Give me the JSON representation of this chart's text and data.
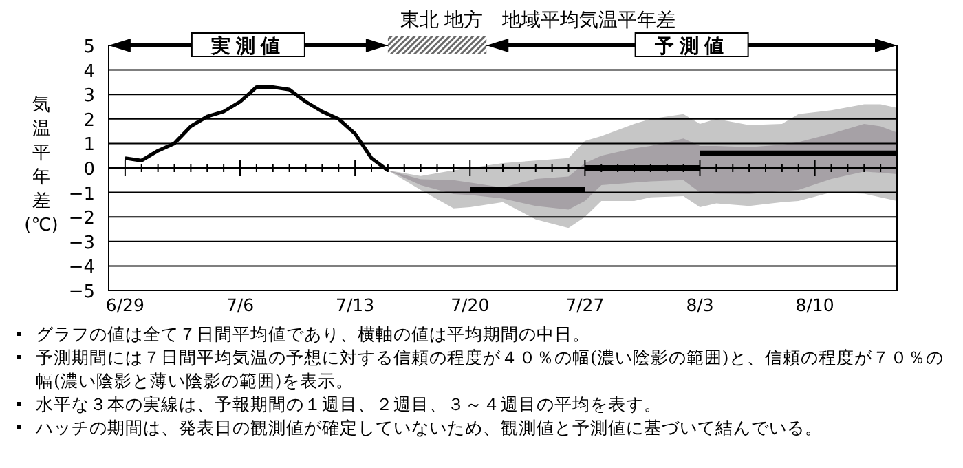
{
  "chart_data": {
    "type": "line",
    "title": "東北 地方　地域平均気温平年差",
    "ylabel": "気温平年差(℃)",
    "xlim": [
      "--06-28",
      "--08-15"
    ],
    "ylim": [
      -5,
      5
    ],
    "yticks": [
      -5,
      -4,
      -3,
      -2,
      -1,
      0,
      1,
      2,
      3,
      4,
      5
    ],
    "xticks": [
      {
        "value": "--06-29",
        "label": "6/29"
      },
      {
        "value": "--07-06",
        "label": "7/6"
      },
      {
        "value": "--07-13",
        "label": "7/13"
      },
      {
        "value": "--07-20",
        "label": "7/20"
      },
      {
        "value": "--07-27",
        "label": "7/27"
      },
      {
        "value": "--08-03",
        "label": "8/3"
      },
      {
        "value": "--08-10",
        "label": "8/10"
      }
    ],
    "grid": "y",
    "annotations": [
      "実測値",
      "予測値",
      "グラフの値は全て７日間平均値であり、横軸の値は平均期間の中日。",
      "予測期間には７日間平均気温の予想に対する信頼の程度が４０％の幅(濃い陰影の範囲)と、信頼の程度が７０％の幅(濃い陰影と薄い陰影の範囲)を表示。",
      "水平な３本の実線は、予報期間の１週目、２週目、３～４週目の平均を表す。",
      "ハッチの期間は、発表日の観測値が確定していないため、観測値と予測値に基づいて結んでいる。"
    ],
    "series": [
      {
        "type": "area",
        "color": "#c6c6c6",
        "x": [
          "--07-15",
          "--07-17",
          "--07-19",
          "--07-20",
          "--07-22",
          "--07-24",
          "--07-26",
          "--07-27",
          "--07-28",
          "--07-30",
          "--07-31",
          "--08-02",
          "--08-03",
          "--08-04",
          "--08-06",
          "--08-08",
          "--08-09",
          "--08-11",
          "--08-13",
          "--08-14",
          "--08-15"
        ],
        "values": [
          null,
          null,
          null,
          null,
          null,
          null,
          null,
          null,
          null,
          null,
          null,
          null,
          null,
          null,
          null,
          null,
          null,
          null,
          null,
          null,
          null
        ],
        "lower": [
          -0.1,
          -0.9,
          -1.65,
          -1.6,
          -1.4,
          -2.1,
          -2.45,
          -2.0,
          -1.35,
          -1.35,
          -1.2,
          -1.15,
          -1.6,
          -1.45,
          -1.55,
          -1.4,
          -1.35,
          -1.0,
          -1.05,
          -1.2,
          -1.35
        ],
        "upper": [
          -0.1,
          -0.33,
          -0.1,
          0,
          0.2,
          0.3,
          0.4,
          1.1,
          1.3,
          1.8,
          2.0,
          2.2,
          1.8,
          2.0,
          1.75,
          1.8,
          2.2,
          2.35,
          2.6,
          2.6,
          2.45
        ]
      },
      {
        "type": "area",
        "color": "#a6a1a6",
        "x": [
          "--07-15",
          "--07-17",
          "--07-19",
          "--07-20",
          "--07-22",
          "--07-24",
          "--07-26",
          "--07-27",
          "--07-28",
          "--07-30",
          "--07-31",
          "--08-02",
          "--08-03",
          "--08-04",
          "--08-06",
          "--08-08",
          "--08-09",
          "--08-11",
          "--08-13",
          "--08-14",
          "--08-15"
        ],
        "values": [
          null,
          null,
          null,
          null,
          null,
          null,
          null,
          null,
          null,
          null,
          null,
          null,
          null,
          null,
          null,
          null,
          null,
          null,
          null,
          null,
          null
        ],
        "lower": [
          -0.1,
          -0.7,
          -1.07,
          -1.1,
          -1.25,
          -1.55,
          -1.7,
          -1.35,
          -0.7,
          -0.6,
          -0.55,
          -0.5,
          -1.0,
          -1.05,
          -1.07,
          -0.95,
          -0.9,
          -0.45,
          -0.15,
          -0.2,
          -0.25
        ],
        "upper": [
          -0.1,
          -0.46,
          -0.5,
          -0.6,
          -0.8,
          -0.45,
          -0.35,
          0.2,
          0.5,
          0.8,
          0.9,
          1.2,
          0.9,
          0.9,
          0.85,
          0.95,
          1.05,
          1.4,
          1.8,
          1.7,
          1.45
        ]
      },
      {
        "type": "line",
        "color": "#000000",
        "x": [
          "--06-29",
          "--06-30",
          "--07-01",
          "--07-02",
          "--07-03",
          "--07-04",
          "--07-05",
          "--07-06",
          "--07-07",
          "--07-08",
          "--07-09",
          "--07-10",
          "--07-11",
          "--07-12",
          "--07-13",
          "--07-14",
          "--07-15"
        ],
        "values": [
          0.4,
          0.3,
          0.7,
          1.0,
          1.7,
          2.1,
          2.3,
          2.7,
          3.3,
          3.3,
          3.2,
          2.7,
          2.3,
          2.0,
          1.4,
          0.4,
          -0.1
        ]
      },
      {
        "type": "line",
        "color": "#000000",
        "x": [
          "--07-20",
          "--07-27"
        ],
        "values": [
          -0.9,
          -0.9
        ]
      },
      {
        "type": "line",
        "color": "#000000",
        "x": [
          "--07-27",
          "--08-03"
        ],
        "values": [
          0,
          0
        ]
      },
      {
        "type": "line",
        "color": "#000000",
        "x": [
          "--08-03",
          "--08-15"
        ],
        "values": [
          0.6,
          0.6
        ]
      }
    ]
  }
}
